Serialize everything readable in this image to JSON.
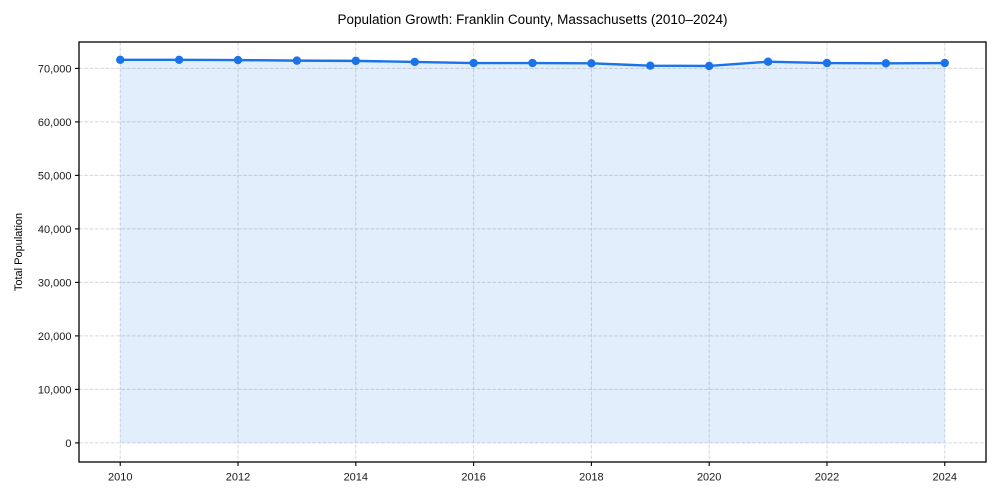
{
  "chart_data": {
    "type": "line",
    "title": "Population Growth: Franklin County, Massachusetts (2010–2024)",
    "xlabel": "",
    "ylabel": "Total Population",
    "x": [
      2010,
      2011,
      2012,
      2013,
      2014,
      2015,
      2016,
      2017,
      2018,
      2019,
      2020,
      2021,
      2022,
      2023,
      2024
    ],
    "series": [
      {
        "name": "Total Population",
        "values": [
          71600,
          71600,
          71550,
          71450,
          71400,
          71200,
          71000,
          71000,
          70950,
          70500,
          70450,
          71250,
          71000,
          70950,
          71000
        ]
      }
    ],
    "xticks": [
      2010,
      2012,
      2014,
      2016,
      2018,
      2020,
      2022,
      2024
    ],
    "xtick_labels": [
      "2010",
      "2012",
      "2014",
      "2016",
      "2018",
      "2020",
      "2022",
      "2024"
    ],
    "yticks": [
      0,
      10000,
      20000,
      30000,
      40000,
      50000,
      60000,
      70000
    ],
    "ytick_labels": [
      "0",
      "10,000",
      "20,000",
      "30,000",
      "40,000",
      "50,000",
      "60,000",
      "70,000"
    ],
    "xlim": [
      2009.3,
      2024.7
    ],
    "ylim": [
      -3570,
      74930
    ],
    "grid": true,
    "grid_style": "dashed",
    "legend": "none",
    "marker": "circle",
    "area_fill": true,
    "area_baseline": 0,
    "colors": {
      "line": "#1a73e8",
      "fill": "rgba(26,115,232,0.12)",
      "grid": "#d8d8d8",
      "spine": "#000000",
      "text": "#1a1a1a",
      "background": "#ffffff"
    }
  }
}
